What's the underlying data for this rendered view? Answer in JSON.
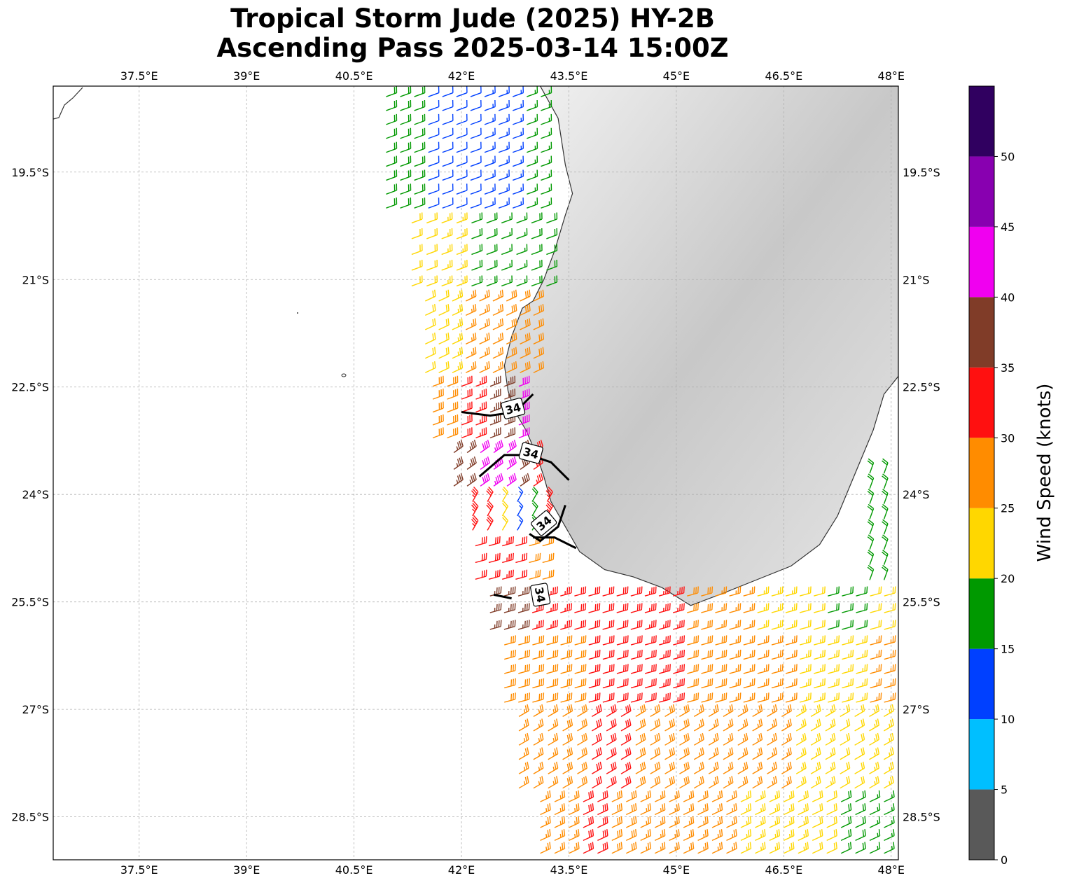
{
  "title_line1": "Tropical Storm Jude (2025) HY-2B",
  "title_line2": "Ascending Pass 2025-03-14 15:00Z",
  "lon_ticks": [
    "37.5°E",
    "39°E",
    "40.5°E",
    "42°E",
    "43.5°E",
    "45°E",
    "46.5°E",
    "48°E"
  ],
  "lat_ticks": [
    "19.5°S",
    "21°S",
    "22.5°S",
    "24°S",
    "25.5°S",
    "27°S",
    "28.5°S"
  ],
  "lon_values": [
    37.5,
    39,
    40.5,
    42,
    43.5,
    45,
    46.5,
    48
  ],
  "lat_values": [
    -19.5,
    -21,
    -22.5,
    -24,
    -25.5,
    -27,
    -28.5
  ],
  "extent": {
    "lon_min": 36.3,
    "lon_max": 48.1,
    "lat_min": -29.1,
    "lat_max": -18.3
  },
  "colorbar": {
    "label": "Wind Speed (knots)",
    "ticks": [
      "0",
      "5",
      "10",
      "15",
      "20",
      "25",
      "30",
      "35",
      "40",
      "45",
      "50"
    ],
    "bins": [
      {
        "from": 0,
        "to": 5,
        "color": "#595959"
      },
      {
        "from": 5,
        "to": 10,
        "color": "#00bfff"
      },
      {
        "from": 10,
        "to": 15,
        "color": "#0040ff"
      },
      {
        "from": 15,
        "to": 20,
        "color": "#009900"
      },
      {
        "from": 20,
        "to": 25,
        "color": "#ffd700"
      },
      {
        "from": 25,
        "to": 30,
        "color": "#ff8c00"
      },
      {
        "from": 30,
        "to": 35,
        "color": "#ff1010"
      },
      {
        "from": 35,
        "to": 40,
        "color": "#803c28"
      },
      {
        "from": 40,
        "to": 45,
        "color": "#f000f0"
      },
      {
        "from": 45,
        "to": 50,
        "color": "#8800b0"
      },
      {
        "from": 50,
        "to": 55,
        "color": "#300060"
      }
    ]
  },
  "contour_label": "34",
  "coastline_madagascar": [
    [
      43.1,
      -18.3
    ],
    [
      43.35,
      -18.75
    ],
    [
      43.45,
      -19.4
    ],
    [
      43.55,
      -19.8
    ],
    [
      43.45,
      -20.1
    ],
    [
      43.3,
      -20.6
    ],
    [
      43.15,
      -21.0
    ],
    [
      43.0,
      -21.3
    ],
    [
      42.85,
      -21.4
    ],
    [
      42.7,
      -21.8
    ],
    [
      42.6,
      -22.2
    ],
    [
      42.65,
      -22.55
    ],
    [
      42.75,
      -22.85
    ],
    [
      42.9,
      -23.1
    ],
    [
      43.05,
      -23.45
    ],
    [
      43.15,
      -23.75
    ],
    [
      43.25,
      -24.1
    ],
    [
      43.45,
      -24.45
    ],
    [
      43.65,
      -24.8
    ],
    [
      44.0,
      -25.05
    ],
    [
      44.4,
      -25.15
    ],
    [
      44.8,
      -25.3
    ],
    [
      45.2,
      -25.55
    ],
    [
      45.6,
      -25.4
    ],
    [
      46.1,
      -25.2
    ],
    [
      46.6,
      -25.0
    ],
    [
      47.0,
      -24.7
    ],
    [
      47.25,
      -24.3
    ],
    [
      47.5,
      -23.7
    ],
    [
      47.75,
      -23.1
    ],
    [
      47.9,
      -22.6
    ],
    [
      48.1,
      -22.35
    ]
  ],
  "wind_swaths": [
    {
      "lat_from": -18.35,
      "lat_to": -20.1,
      "lon_from": 40.85,
      "lon_to": 43.6,
      "speeds": [
        18,
        12,
        11,
        13,
        17,
        18
      ],
      "angle": -20
    },
    {
      "lat_from": -20.1,
      "lat_to": -21.2,
      "lon_from": 41.2,
      "lon_to": 43.5,
      "speeds": [
        22,
        23,
        18,
        17,
        19,
        22
      ],
      "angle": -20
    },
    {
      "lat_from": -21.2,
      "lat_to": -22.4,
      "lon_from": 41.4,
      "lon_to": 43.1,
      "speeds": [
        22,
        23,
        26,
        27,
        28,
        28
      ],
      "angle": -25
    },
    {
      "lat_from": -22.4,
      "lat_to": -23.3,
      "lon_from": 41.5,
      "lon_to": 42.9,
      "speeds": [
        28,
        31,
        33,
        36,
        37,
        40
      ],
      "angle": -20
    },
    {
      "lat_from": -23.3,
      "lat_to": -24.0,
      "lon_from": 41.8,
      "lon_to": 43.1,
      "speeds": [
        37,
        42,
        44,
        41,
        38,
        33
      ],
      "angle": -35
    },
    {
      "lat_from": -24.0,
      "lat_to": -24.6,
      "lon_from": 42.05,
      "lon_to": 43.3,
      "speeds": [
        33,
        31,
        22,
        13,
        18,
        33
      ],
      "angle": -60
    },
    {
      "lat_from": -24.6,
      "lat_to": -25.3,
      "lon_from": 42.1,
      "lon_to": 43.6,
      "speeds": [
        32,
        33,
        30,
        28,
        33,
        31
      ],
      "angle": -15
    },
    {
      "lat_from": -25.3,
      "lat_to": -26.0,
      "lon_from": 42.3,
      "lon_to": 48.0,
      "speeds": [
        36,
        33,
        31,
        30,
        33,
        28,
        26,
        24,
        20,
        18,
        21
      ],
      "angle": -15
    },
    {
      "lat_from": -26.0,
      "lat_to": -27.0,
      "lon_from": 42.5,
      "lon_to": 48.0,
      "speeds": [
        28,
        29,
        31,
        32,
        33,
        29,
        27,
        26,
        24,
        23,
        26
      ],
      "angle": -15
    },
    {
      "lat_from": -27.0,
      "lat_to": -28.2,
      "lon_from": 42.7,
      "lon_to": 48.0,
      "speeds": [
        27,
        28,
        30,
        29,
        28,
        27,
        26,
        25,
        23,
        22,
        24
      ],
      "angle": -30
    },
    {
      "lat_from": -28.2,
      "lat_to": -29.1,
      "lon_from": 43.0,
      "lon_to": 48.0,
      "speeds": [
        27,
        31,
        29,
        27,
        26,
        25,
        24,
        23,
        22,
        18,
        17
      ],
      "angle": -25
    },
    {
      "lat_from": -23.6,
      "lat_to": -25.3,
      "lon_from": 47.6,
      "lon_to": 48.0,
      "speeds": [
        18,
        17,
        19,
        18
      ],
      "angle": -70
    }
  ]
}
